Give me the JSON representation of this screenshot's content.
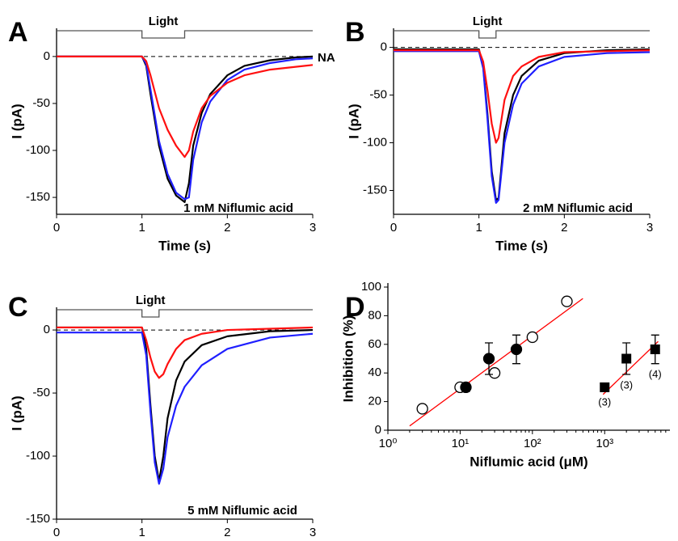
{
  "chart_data": [
    {
      "type": "line",
      "label": "A",
      "xlabel": "Time (s)",
      "ylabel": "I (pA)",
      "annotations": [
        "1 mM Niflumic acid",
        "NA"
      ],
      "stimulus": {
        "label": "Light",
        "x": [
          1,
          1.5
        ]
      },
      "hline": 0,
      "xlim": [
        0,
        3
      ],
      "ylim": [
        -168,
        30
      ],
      "xticks": [
        0,
        1,
        2,
        3
      ],
      "yticks": [
        0,
        -50,
        -100,
        -150
      ],
      "x": [
        0,
        0.5,
        0.9,
        1.0,
        1.05,
        1.1,
        1.2,
        1.3,
        1.4,
        1.5,
        1.55,
        1.6,
        1.7,
        1.8,
        2.0,
        2.2,
        2.5,
        2.8,
        3.0
      ],
      "series": [
        {
          "color": "#000000",
          "values": [
            0,
            0,
            0,
            0,
            -10,
            -40,
            -95,
            -130,
            -148,
            -155,
            -135,
            -95,
            -60,
            -40,
            -20,
            -10,
            -4,
            -1,
            0
          ]
        },
        {
          "color": "#1f1fff",
          "values": [
            0,
            0,
            0,
            0,
            -8,
            -35,
            -90,
            -125,
            -145,
            -152,
            -150,
            -110,
            -70,
            -48,
            -25,
            -14,
            -7,
            -3,
            -2
          ]
        },
        {
          "color": "#ff1010",
          "values": [
            0,
            0,
            0,
            0,
            -5,
            -20,
            -55,
            -78,
            -95,
            -107,
            -100,
            -80,
            -55,
            -42,
            -28,
            -20,
            -14,
            -11,
            -9
          ]
        }
      ]
    },
    {
      "type": "line",
      "label": "B",
      "xlabel": "Time (s)",
      "ylabel": "I (pA)",
      "annotations": [
        "2 mM Niflumic acid"
      ],
      "stimulus": {
        "label": "Light",
        "x": [
          1,
          1.2
        ]
      },
      "hline": 0,
      "xlim": [
        0,
        3
      ],
      "ylim": [
        -175,
        20
      ],
      "xticks": [
        0,
        1,
        2,
        3
      ],
      "yticks": [
        0,
        -50,
        -100,
        -150
      ],
      "x": [
        0,
        0.5,
        0.9,
        1.0,
        1.05,
        1.1,
        1.15,
        1.2,
        1.23,
        1.3,
        1.4,
        1.5,
        1.7,
        2.0,
        2.5,
        3.0
      ],
      "series": [
        {
          "color": "#000000",
          "values": [
            -2,
            -2,
            -2,
            -2,
            -20,
            -70,
            -130,
            -160,
            -158,
            -90,
            -50,
            -30,
            -14,
            -6,
            -3,
            -2
          ]
        },
        {
          "color": "#1f1fff",
          "values": [
            -4,
            -4,
            -4,
            -4,
            -22,
            -75,
            -135,
            -163,
            -160,
            -100,
            -60,
            -38,
            -20,
            -10,
            -6,
            -5
          ]
        },
        {
          "color": "#ff1010",
          "values": [
            -3,
            -3,
            -3,
            -3,
            -15,
            -45,
            -80,
            -100,
            -95,
            -55,
            -30,
            -20,
            -10,
            -5,
            -4,
            -3
          ]
        }
      ]
    },
    {
      "type": "line",
      "label": "C",
      "xlabel": "Time (s)",
      "ylabel": "I (pA)",
      "annotations": [
        "5 mM Niflumic acid"
      ],
      "stimulus": {
        "label": "Light",
        "x": [
          1,
          1.2
        ]
      },
      "hline": 0,
      "xlim": [
        0,
        3
      ],
      "ylim": [
        -150,
        18
      ],
      "xticks": [
        0,
        1,
        2,
        3
      ],
      "yticks": [
        0,
        -50,
        -100,
        -150
      ],
      "x": [
        0,
        0.5,
        0.9,
        1.0,
        1.05,
        1.1,
        1.15,
        1.2,
        1.25,
        1.3,
        1.4,
        1.5,
        1.7,
        2.0,
        2.5,
        3.0
      ],
      "series": [
        {
          "color": "#000000",
          "values": [
            2,
            2,
            2,
            2,
            -15,
            -60,
            -100,
            -120,
            -100,
            -70,
            -40,
            -25,
            -12,
            -5,
            -1,
            0
          ]
        },
        {
          "color": "#1f1fff",
          "values": [
            -2,
            -2,
            -2,
            -2,
            -20,
            -65,
            -105,
            -122,
            -110,
            -85,
            -60,
            -45,
            -28,
            -15,
            -6,
            -3
          ]
        },
        {
          "color": "#ff1010",
          "values": [
            2,
            2,
            2,
            2,
            -8,
            -22,
            -33,
            -38,
            -35,
            -27,
            -15,
            -8,
            -3,
            0,
            1,
            2
          ]
        }
      ]
    },
    {
      "type": "scatter",
      "label": "D",
      "xlabel": "Niflumic acid (μM)",
      "ylabel": "Inhibition (%)",
      "log_x": true,
      "xlim": [
        1,
        8000
      ],
      "ylim": [
        0,
        100
      ],
      "xticks": [
        {
          "value": 1,
          "label": "10⁰"
        },
        {
          "value": 10,
          "label": "10¹"
        },
        {
          "value": 100,
          "label": "10²"
        },
        {
          "value": 1000,
          "label": "10³"
        }
      ],
      "yticks": [
        0,
        20,
        40,
        60,
        80,
        100
      ],
      "series": [
        {
          "marker": "line",
          "color": "#ff0000",
          "x": [
            2,
            500
          ],
          "values": [
            3,
            92
          ]
        },
        {
          "marker": "line",
          "color": "#ff0000",
          "x": [
            950,
            5500
          ],
          "values": [
            25,
            62
          ]
        },
        {
          "marker": "open-circle",
          "color": "#000000",
          "x": [
            3,
            10,
            30,
            100,
            300
          ],
          "values": [
            15,
            30,
            40,
            65,
            90
          ]
        },
        {
          "marker": "circle",
          "color": "#000000",
          "x": [
            12,
            25,
            60
          ],
          "values": [
            30,
            50,
            56.5
          ],
          "errors": [
            3,
            11,
            10
          ]
        },
        {
          "marker": "square",
          "color": "#000000",
          "x": [
            1000,
            2000,
            5000
          ],
          "values": [
            30,
            50,
            56.5
          ],
          "errors": [
            3,
            11,
            10
          ],
          "n_labels": [
            "(3)",
            "(3)",
            "(4)"
          ]
        }
      ]
    }
  ]
}
